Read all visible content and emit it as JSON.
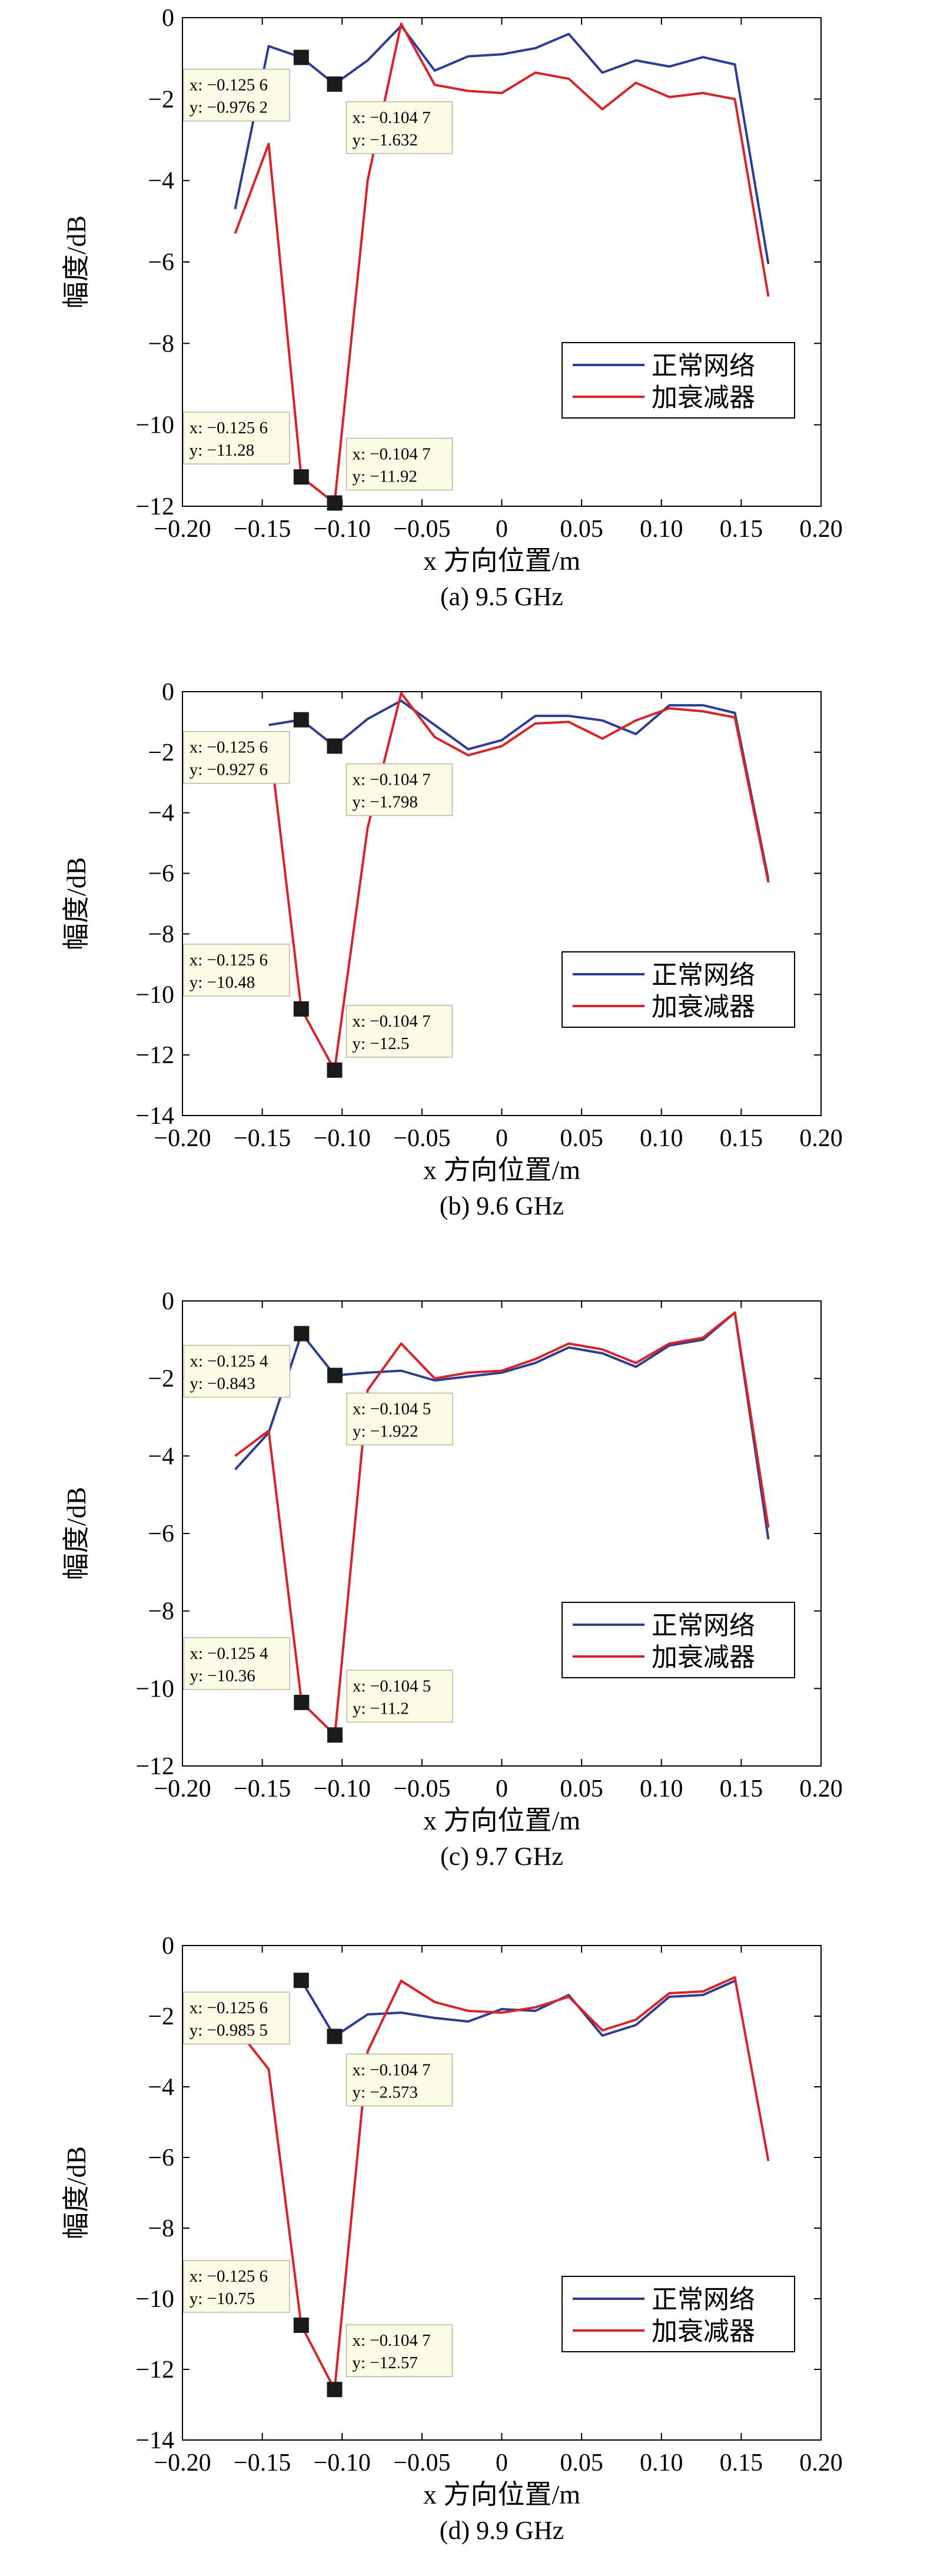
{
  "colors": {
    "normal": "#2c3e94",
    "attenuator": "#d9232a",
    "datatip_bg": "#fbfbe6",
    "datatip_border": "#b8b89a",
    "marker": "#1a1a1a"
  },
  "chart_data": [
    {
      "type": "line",
      "caption": "(a) 9.5 GHz",
      "xlabel": "x 方向位置/m",
      "ylabel": "幅度/dB",
      "xlim": [
        -0.2,
        0.2
      ],
      "ylim": [
        -12,
        0
      ],
      "xticks": [
        "−0.20",
        "−0.15",
        "−0.10",
        "−0.05",
        "0",
        "0.05",
        "0.10",
        "0.15",
        "0.20"
      ],
      "yticks": [
        "0",
        "−2",
        "−4",
        "−6",
        "−8",
        "−10",
        "−12"
      ],
      "legend": {
        "position": "lower-right",
        "entries": [
          "正常网络",
          "加衰减器"
        ]
      },
      "grid": false,
      "series": [
        {
          "name": "正常网络",
          "x": [
            -0.167,
            -0.146,
            -0.1256,
            -0.1047,
            -0.084,
            -0.063,
            -0.042,
            -0.021,
            0.0,
            0.021,
            0.042,
            0.063,
            0.084,
            0.105,
            0.126,
            0.146,
            0.167
          ],
          "y": [
            -4.7,
            -0.7,
            -0.9762,
            -1.632,
            -1.05,
            -0.2,
            -1.3,
            -0.95,
            -0.9,
            -0.75,
            -0.4,
            -1.35,
            -1.05,
            -1.2,
            -0.97,
            -1.15,
            -6.05
          ]
        },
        {
          "name": "加衰减器",
          "x": [
            -0.167,
            -0.146,
            -0.1256,
            -0.1047,
            -0.084,
            -0.063,
            -0.042,
            -0.021,
            0.0,
            0.021,
            0.042,
            0.063,
            0.084,
            0.105,
            0.126,
            0.146,
            0.167
          ],
          "y": [
            -5.3,
            -3.1,
            -11.28,
            -11.92,
            -4.0,
            -0.15,
            -1.65,
            -1.8,
            -1.85,
            -1.35,
            -1.5,
            -2.25,
            -1.6,
            -1.95,
            -1.85,
            -2.0,
            -6.85
          ]
        }
      ],
      "datatips": [
        {
          "x": -0.1256,
          "y": -0.9762,
          "x_text": "x: −0.125 6",
          "y_text": "y: −0.976 2"
        },
        {
          "x": -0.1047,
          "y": -1.632,
          "x_text": "x: −0.104 7",
          "y_text": "y: −1.632"
        },
        {
          "x": -0.1256,
          "y": -11.28,
          "x_text": "x: −0.125 6",
          "y_text": "y: −11.28"
        },
        {
          "x": -0.1047,
          "y": -11.92,
          "x_text": "x: −0.104 7",
          "y_text": "y: −11.92"
        }
      ]
    },
    {
      "type": "line",
      "caption": "(b) 9.6 GHz",
      "xlabel": "x 方向位置/m",
      "ylabel": "幅度/dB",
      "xlim": [
        -0.2,
        0.2
      ],
      "ylim": [
        -14,
        0
      ],
      "xticks": [
        "−0.20",
        "−0.15",
        "−0.10",
        "−0.05",
        "0",
        "0.05",
        "0.10",
        "0.15",
        "0.20"
      ],
      "yticks": [
        "0",
        "−2",
        "−4",
        "−6",
        "−8",
        "−10",
        "−12",
        "−14"
      ],
      "legend": {
        "position": "lower-right",
        "entries": [
          "正常网络",
          "加衰减器"
        ]
      },
      "grid": false,
      "series": [
        {
          "name": "正常网络",
          "x": [
            -0.146,
            -0.1256,
            -0.1047,
            -0.084,
            -0.063,
            -0.042,
            -0.021,
            0.0,
            0.021,
            0.042,
            0.063,
            0.084,
            0.105,
            0.126,
            0.146,
            0.167
          ],
          "y": [
            -1.1,
            -0.9276,
            -1.798,
            -0.9,
            -0.3,
            -1.1,
            -1.9,
            -1.6,
            -0.8,
            -0.8,
            -0.95,
            -1.4,
            -0.45,
            -0.45,
            -0.7,
            -6.2
          ]
        },
        {
          "name": "加衰减器",
          "x": [
            -0.146,
            -0.1256,
            -0.1047,
            -0.084,
            -0.063,
            -0.042,
            -0.021,
            0.0,
            0.021,
            0.042,
            0.063,
            0.084,
            0.105,
            0.126,
            0.146,
            0.167
          ],
          "y": [
            -1.4,
            -10.48,
            -12.5,
            -4.5,
            -0.05,
            -1.5,
            -2.1,
            -1.8,
            -1.05,
            -1.0,
            -1.55,
            -0.95,
            -0.55,
            -0.65,
            -0.85,
            -6.3
          ]
        }
      ],
      "datatips": [
        {
          "x": -0.1256,
          "y": -0.9276,
          "x_text": "x: −0.125 6",
          "y_text": "y: −0.927 6"
        },
        {
          "x": -0.1047,
          "y": -1.798,
          "x_text": "x: −0.104 7",
          "y_text": "y: −1.798"
        },
        {
          "x": -0.1256,
          "y": -10.48,
          "x_text": "x: −0.125 6",
          "y_text": "y: −10.48"
        },
        {
          "x": -0.1047,
          "y": -12.5,
          "x_text": "x: −0.104 7",
          "y_text": "y: −12.5"
        }
      ]
    },
    {
      "type": "line",
      "caption": "(c) 9.7 GHz",
      "xlabel": "x 方向位置/m",
      "ylabel": "幅度/dB",
      "xlim": [
        -0.2,
        0.2
      ],
      "ylim": [
        -12,
        0
      ],
      "xticks": [
        "−0.20",
        "−0.15",
        "−0.10",
        "−0.05",
        "0",
        "0.05",
        "0.10",
        "0.15",
        "0.20"
      ],
      "yticks": [
        "0",
        "−2",
        "−4",
        "−6",
        "−8",
        "−10",
        "−12"
      ],
      "legend": {
        "position": "lower-right",
        "entries": [
          "正常网络",
          "加衰减器"
        ]
      },
      "grid": false,
      "series": [
        {
          "name": "正常网络",
          "x": [
            -0.167,
            -0.146,
            -0.1254,
            -0.1045,
            -0.084,
            -0.063,
            -0.042,
            -0.021,
            0.0,
            0.021,
            0.042,
            0.063,
            0.084,
            0.105,
            0.126,
            0.146,
            0.167
          ],
          "y": [
            -4.35,
            -3.4,
            -0.843,
            -1.922,
            -1.85,
            -1.8,
            -2.05,
            -1.95,
            -1.85,
            -1.6,
            -1.2,
            -1.35,
            -1.7,
            -1.15,
            -1.0,
            -0.3,
            -6.15
          ]
        },
        {
          "name": "加衰减器",
          "x": [
            -0.167,
            -0.146,
            -0.1254,
            -0.1045,
            -0.084,
            -0.063,
            -0.042,
            -0.021,
            0.0,
            0.021,
            0.042,
            0.063,
            0.084,
            0.105,
            0.126,
            0.146,
            0.167
          ],
          "y": [
            -4.0,
            -3.35,
            -10.36,
            -11.2,
            -2.3,
            -1.1,
            -2.0,
            -1.85,
            -1.8,
            -1.5,
            -1.1,
            -1.25,
            -1.6,
            -1.1,
            -0.95,
            -0.3,
            -5.85
          ]
        }
      ],
      "datatips": [
        {
          "x": -0.1254,
          "y": -0.843,
          "x_text": "x: −0.125 4",
          "y_text": "y: −0.843"
        },
        {
          "x": -0.1045,
          "y": -1.922,
          "x_text": "x: −0.104 5",
          "y_text": "y: −1.922"
        },
        {
          "x": -0.1254,
          "y": -10.36,
          "x_text": "x: −0.125 4",
          "y_text": "y: −10.36"
        },
        {
          "x": -0.1045,
          "y": -11.2,
          "x_text": "x: −0.104 5",
          "y_text": "y: −11.2"
        }
      ]
    },
    {
      "type": "line",
      "caption": "(d) 9.9 GHz",
      "xlabel": "x 方向位置/m",
      "ylabel": "幅度/dB",
      "xlim": [
        -0.2,
        0.2
      ],
      "ylim": [
        -14,
        0
      ],
      "xticks": [
        "−0.20",
        "−0.15",
        "−0.10",
        "−0.05",
        "0",
        "0.05",
        "0.10",
        "0.15",
        "0.20"
      ],
      "yticks": [
        "0",
        "−2",
        "−4",
        "−6",
        "−8",
        "−10",
        "−12",
        "−14"
      ],
      "legend": {
        "position": "lower-right",
        "entries": [
          "正常网络",
          "加衰减器"
        ]
      },
      "grid": false,
      "series": [
        {
          "name": "正常网络",
          "x": [
            -0.1256,
            -0.1047,
            -0.084,
            -0.063,
            -0.042,
            -0.021,
            0.0,
            0.021,
            0.042,
            0.063,
            0.084,
            0.105,
            0.126,
            0.146
          ],
          "y": [
            -0.9855,
            -2.573,
            -1.95,
            -1.9,
            -2.05,
            -2.15,
            -1.8,
            -1.85,
            -1.4,
            -2.55,
            -2.25,
            -1.45,
            -1.4,
            -1.0
          ]
        },
        {
          "name": "加衰减器",
          "x": [
            -0.167,
            -0.146,
            -0.1256,
            -0.1047,
            -0.084,
            -0.063,
            -0.042,
            -0.021,
            0.0,
            0.021,
            0.042,
            0.063,
            0.084,
            0.105,
            0.126,
            0.146,
            0.167
          ],
          "y": [
            -2.3,
            -3.5,
            -10.75,
            -12.57,
            -3.0,
            -1.0,
            -1.6,
            -1.85,
            -1.9,
            -1.75,
            -1.45,
            -2.4,
            -2.1,
            -1.35,
            -1.3,
            -0.9,
            -6.1
          ]
        }
      ],
      "datatips": [
        {
          "x": -0.1256,
          "y": -0.9855,
          "x_text": "x: −0.125 6",
          "y_text": "y: −0.985 5"
        },
        {
          "x": -0.1047,
          "y": -2.573,
          "x_text": "x: −0.104 7",
          "y_text": "y: −2.573"
        },
        {
          "x": -0.1256,
          "y": -10.75,
          "x_text": "x: −0.125 6",
          "y_text": "y: −10.75"
        },
        {
          "x": -0.1047,
          "y": -12.57,
          "x_text": "x: −0.104 7",
          "y_text": "y: −12.57"
        }
      ]
    }
  ]
}
